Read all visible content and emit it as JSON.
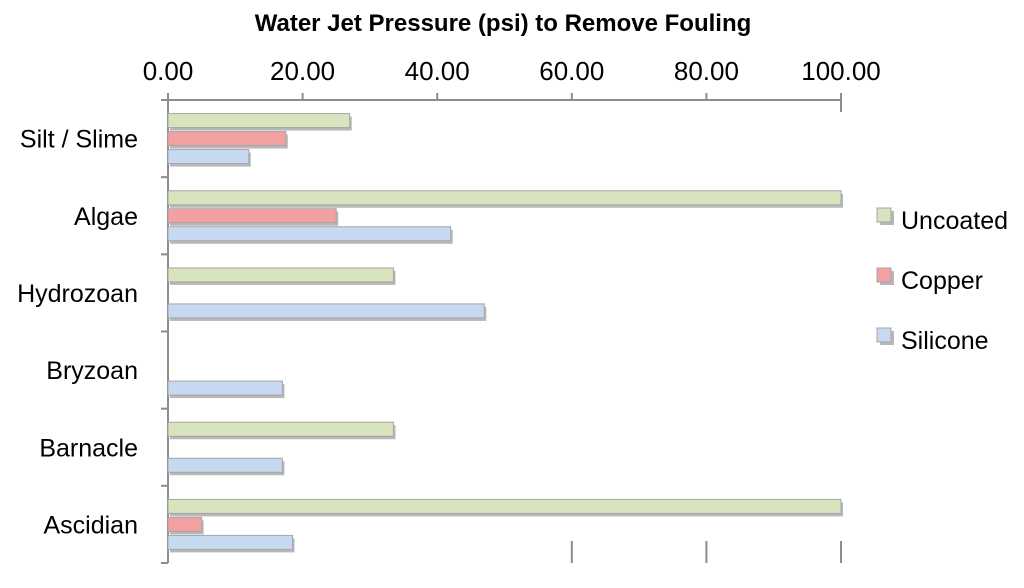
{
  "chart_data": {
    "type": "bar",
    "orientation": "horizontal",
    "title": "Water Jet Pressure (psi) to Remove Fouling",
    "xlabel": "",
    "ylabel": "",
    "xlim": [
      0,
      100
    ],
    "x_ticks": [
      "0.00",
      "20.00",
      "40.00",
      "60.00",
      "80.00",
      "100.00"
    ],
    "x_axis_position": "top",
    "grid": false,
    "legend_position": "right",
    "categories": [
      "Silt / Slime",
      "Algae",
      "Hydrozoan",
      "Bryzoan",
      "Barnacle",
      "Ascidian"
    ],
    "series": [
      {
        "name": "Uncoated",
        "color": "#d7e4bd",
        "values": [
          27,
          100,
          33.5,
          null,
          33.5,
          100
        ]
      },
      {
        "name": "Copper",
        "color": "#f2a0a1",
        "values": [
          17.5,
          25,
          null,
          null,
          null,
          5
        ]
      },
      {
        "name": "Silicone",
        "color": "#c6d9f1",
        "values": [
          12,
          42,
          47,
          17,
          17,
          18.5
        ]
      }
    ]
  }
}
